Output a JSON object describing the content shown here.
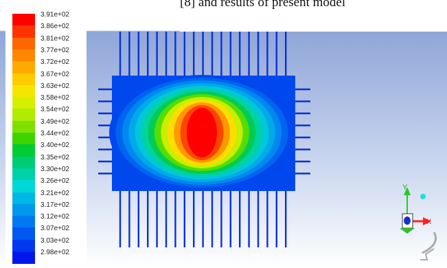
{
  "caption": "[8] and results of present model",
  "legend": {
    "labels": [
      "3.91e+02",
      "3.86e+02",
      "3.81e+02",
      "3.77e+02",
      "3.72e+02",
      "3.67e+02",
      "3.63e+02",
      "3.58e+02",
      "3.54e+02",
      "3.49e+02",
      "3.44e+02",
      "3.40e+02",
      "3.35e+02",
      "3.30e+02",
      "3.26e+02",
      "3.21e+02",
      "3.17e+02",
      "3.12e+02",
      "3.07e+02",
      "3.03e+02",
      "2.98e+02"
    ],
    "colors": [
      "#ff0000",
      "#ff3300",
      "#ff6600",
      "#ff8800",
      "#ffaa00",
      "#ffcc00",
      "#f4e600",
      "#d4f000",
      "#b0ec00",
      "#7ee000",
      "#3fd400",
      "#00cc33",
      "#00cc77",
      "#00d2a8",
      "#00d8d8",
      "#00b8e6",
      "#0098ec",
      "#0078f0",
      "#0058f0",
      "#0038f0",
      "#0018ec"
    ]
  },
  "contour": {
    "colors": [
      "#0048ee",
      "#0064f0",
      "#0088f0",
      "#00aaea",
      "#00c8d8",
      "#00d2a0",
      "#00cc55",
      "#55dd00",
      "#c8ee00",
      "#ffdd00",
      "#ff9900",
      "#ff4400",
      "#ff0000"
    ]
  },
  "axes": {
    "x_label": "X",
    "y_label": "Y"
  },
  "icons": [
    "axis-triad-icon",
    "rotate-arrow-icon"
  ]
}
